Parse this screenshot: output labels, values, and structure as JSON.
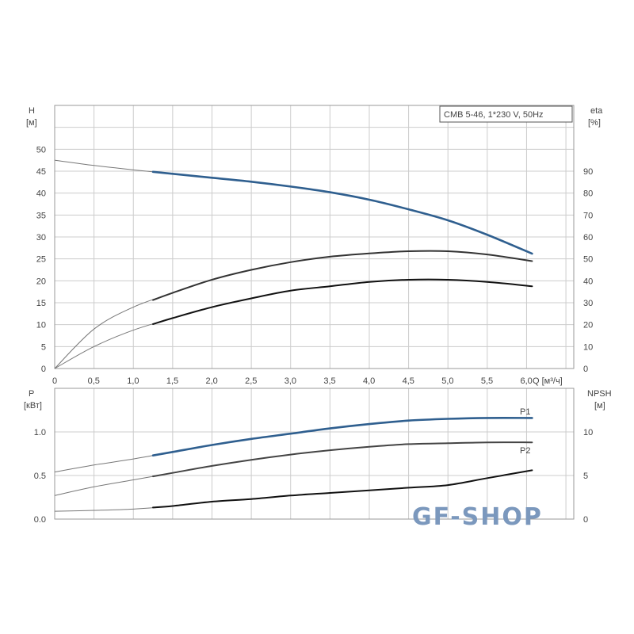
{
  "chart_data": [
    {
      "type": "line",
      "title": "CMB 5-46, 1*230 V, 50Hz",
      "xlabel": "Q [м³/ч]",
      "ylabel": "H [м]",
      "ylabel_right": "eta [%]",
      "xlim": [
        0,
        6.6
      ],
      "ylim": [
        0,
        60
      ],
      "ylim_right": [
        0,
        120
      ],
      "grid": true,
      "x_ticks": [
        "0",
        "0,5",
        "1,0",
        "1,5",
        "2,0",
        "2,5",
        "3,0",
        "3,5",
        "4,0",
        "4,5",
        "5,0",
        "5,5",
        "6,0"
      ],
      "y_ticks": [
        "0",
        "5",
        "10",
        "15",
        "20",
        "25",
        "30",
        "35",
        "40",
        "45",
        "50"
      ],
      "y_ticks_right": [
        "0",
        "10",
        "20",
        "30",
        "40",
        "50",
        "60",
        "70",
        "80",
        "90"
      ],
      "x": [
        0,
        0.5,
        1.0,
        1.5,
        2.0,
        2.5,
        3.0,
        3.5,
        4.0,
        4.5,
        5.0,
        5.5,
        6.07
      ],
      "series": [
        {
          "axis": "left",
          "color": "#2f5f8f",
          "values": [
            47.5,
            46.3,
            45.3,
            44.4,
            43.5,
            42.6,
            41.5,
            40.2,
            38.5,
            36.3,
            33.8,
            30.5,
            26.2
          ]
        },
        {
          "axis": "right",
          "color": "#333333",
          "values": [
            0,
            18,
            28,
            34.5,
            40.5,
            45,
            48.5,
            51,
            52.5,
            53.5,
            53.5,
            52,
            49
          ]
        },
        {
          "axis": "right",
          "color": "#111111",
          "values": [
            0,
            10,
            17.5,
            23,
            28,
            32,
            35.5,
            37.5,
            39.5,
            40.5,
            40.5,
            39.5,
            37.5
          ]
        }
      ]
    },
    {
      "type": "line",
      "ylabel": "P [кВт]",
      "ylabel_right": "NPSH [м]",
      "xlim": [
        0,
        6.6
      ],
      "ylim": [
        0,
        1.5
      ],
      "ylim_right": [
        0,
        15
      ],
      "grid": true,
      "y_ticks": [
        "0.0",
        "0.5",
        "1.0"
      ],
      "y_ticks_right": [
        "0",
        "5",
        "10"
      ],
      "x": [
        0,
        0.5,
        1.0,
        1.5,
        2.0,
        2.5,
        3.0,
        3.5,
        4.0,
        4.5,
        5.0,
        5.5,
        6.07
      ],
      "series": [
        {
          "name": "P1",
          "axis": "left",
          "color": "#2f5f8f",
          "values": [
            0.54,
            0.62,
            0.69,
            0.77,
            0.85,
            0.92,
            0.98,
            1.04,
            1.09,
            1.13,
            1.15,
            1.16,
            1.16
          ]
        },
        {
          "name": "P2",
          "axis": "left",
          "color": "#444444",
          "values": [
            0.27,
            0.37,
            0.45,
            0.53,
            0.61,
            0.68,
            0.74,
            0.79,
            0.83,
            0.86,
            0.87,
            0.88,
            0.88
          ]
        },
        {
          "axis": "right",
          "color": "#111111",
          "values": [
            0.9,
            1.0,
            1.15,
            1.5,
            2.0,
            2.3,
            2.7,
            3.0,
            3.3,
            3.6,
            3.9,
            4.7,
            5.6
          ]
        }
      ]
    }
  ],
  "watermark": "GF-SHOP"
}
